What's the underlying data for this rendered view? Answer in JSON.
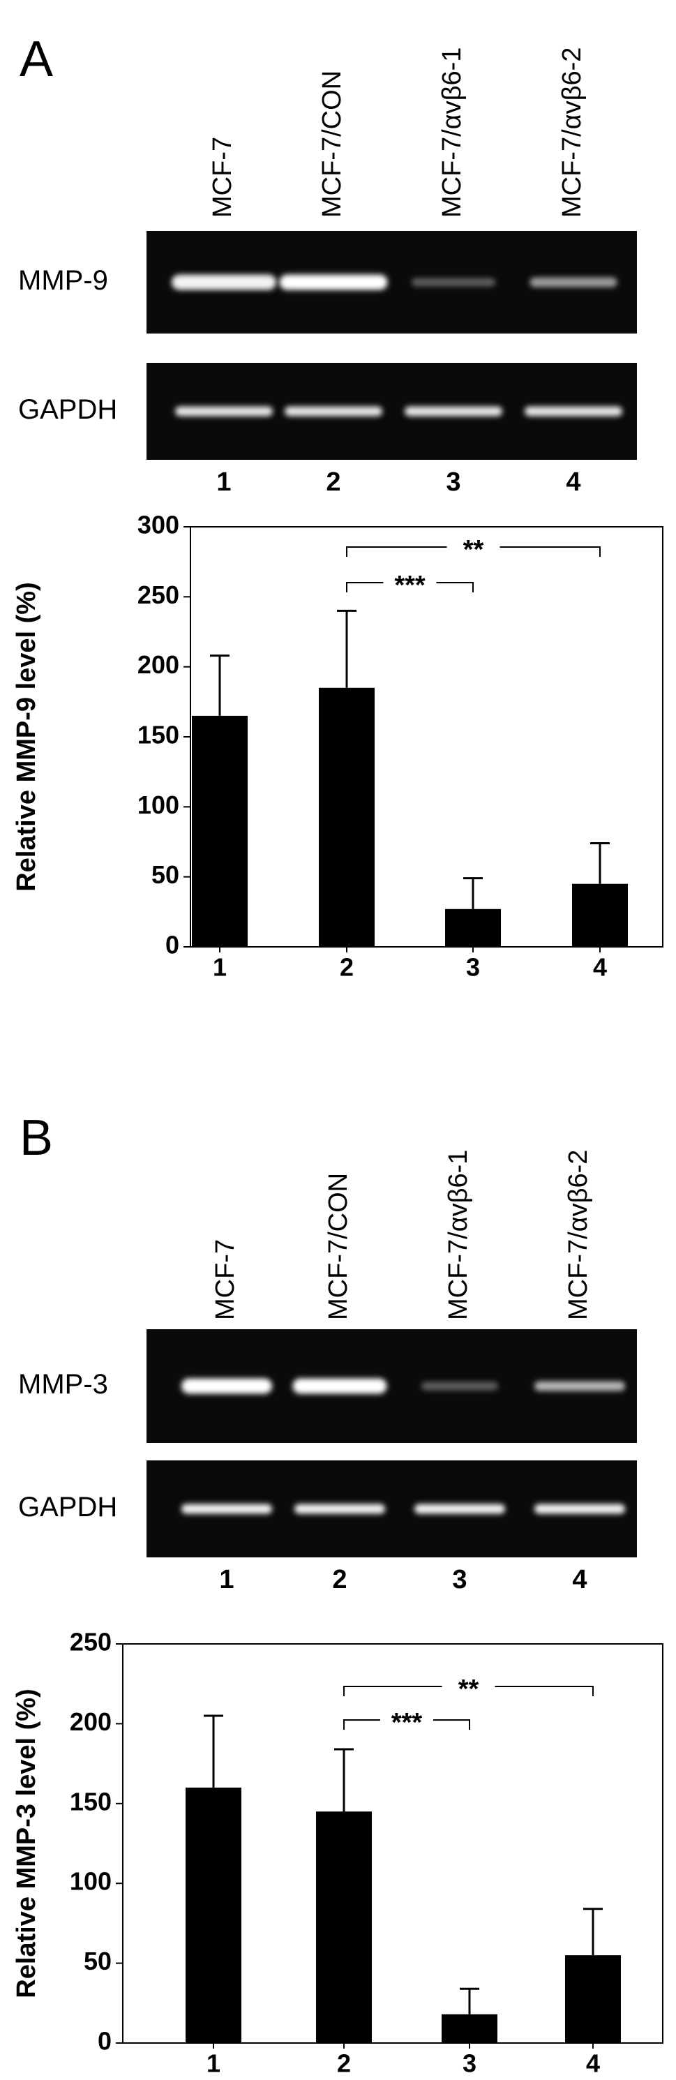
{
  "panels": [
    {
      "label": "A",
      "lanes": [
        "MCF-7",
        "MCF-7/CON",
        "MCF-7/αvβ6-1",
        "MCF-7/αvβ6-2"
      ],
      "rows": [
        "MMP-9",
        "GAPDH"
      ],
      "lane_numbers": [
        "1",
        "2",
        "3",
        "4"
      ]
    },
    {
      "label": "B",
      "lanes": [
        "MCF-7",
        "MCF-7/CON",
        "MCF-7/αvβ6-1",
        "MCF-7/αvβ6-2"
      ],
      "rows": [
        "MMP-3",
        "GAPDH"
      ],
      "lane_numbers": [
        "1",
        "2",
        "3",
        "4"
      ]
    }
  ],
  "chart_data": [
    {
      "type": "bar",
      "y_label": "Relative MMP-9 level (%)",
      "categories": [
        "1",
        "2",
        "3",
        "4"
      ],
      "values": [
        165,
        185,
        27,
        45
      ],
      "errors": [
        43,
        55,
        22,
        29
      ],
      "color": "#000000",
      "ylim": [
        0,
        300
      ],
      "yticks": [
        0,
        50,
        100,
        150,
        200,
        250,
        300
      ],
      "annotations": [
        "***",
        "**"
      ]
    },
    {
      "type": "bar",
      "y_label": "Relative MMP-3 level (%)",
      "categories": [
        "1",
        "2",
        "3",
        "4"
      ],
      "values": [
        160,
        145,
        18,
        55
      ],
      "errors": [
        45,
        39,
        16,
        29
      ],
      "color": "#000000",
      "ylim": [
        0,
        250
      ],
      "yticks": [
        0,
        50,
        100,
        150,
        200,
        250
      ],
      "annotations": [
        "***",
        "**"
      ]
    }
  ]
}
